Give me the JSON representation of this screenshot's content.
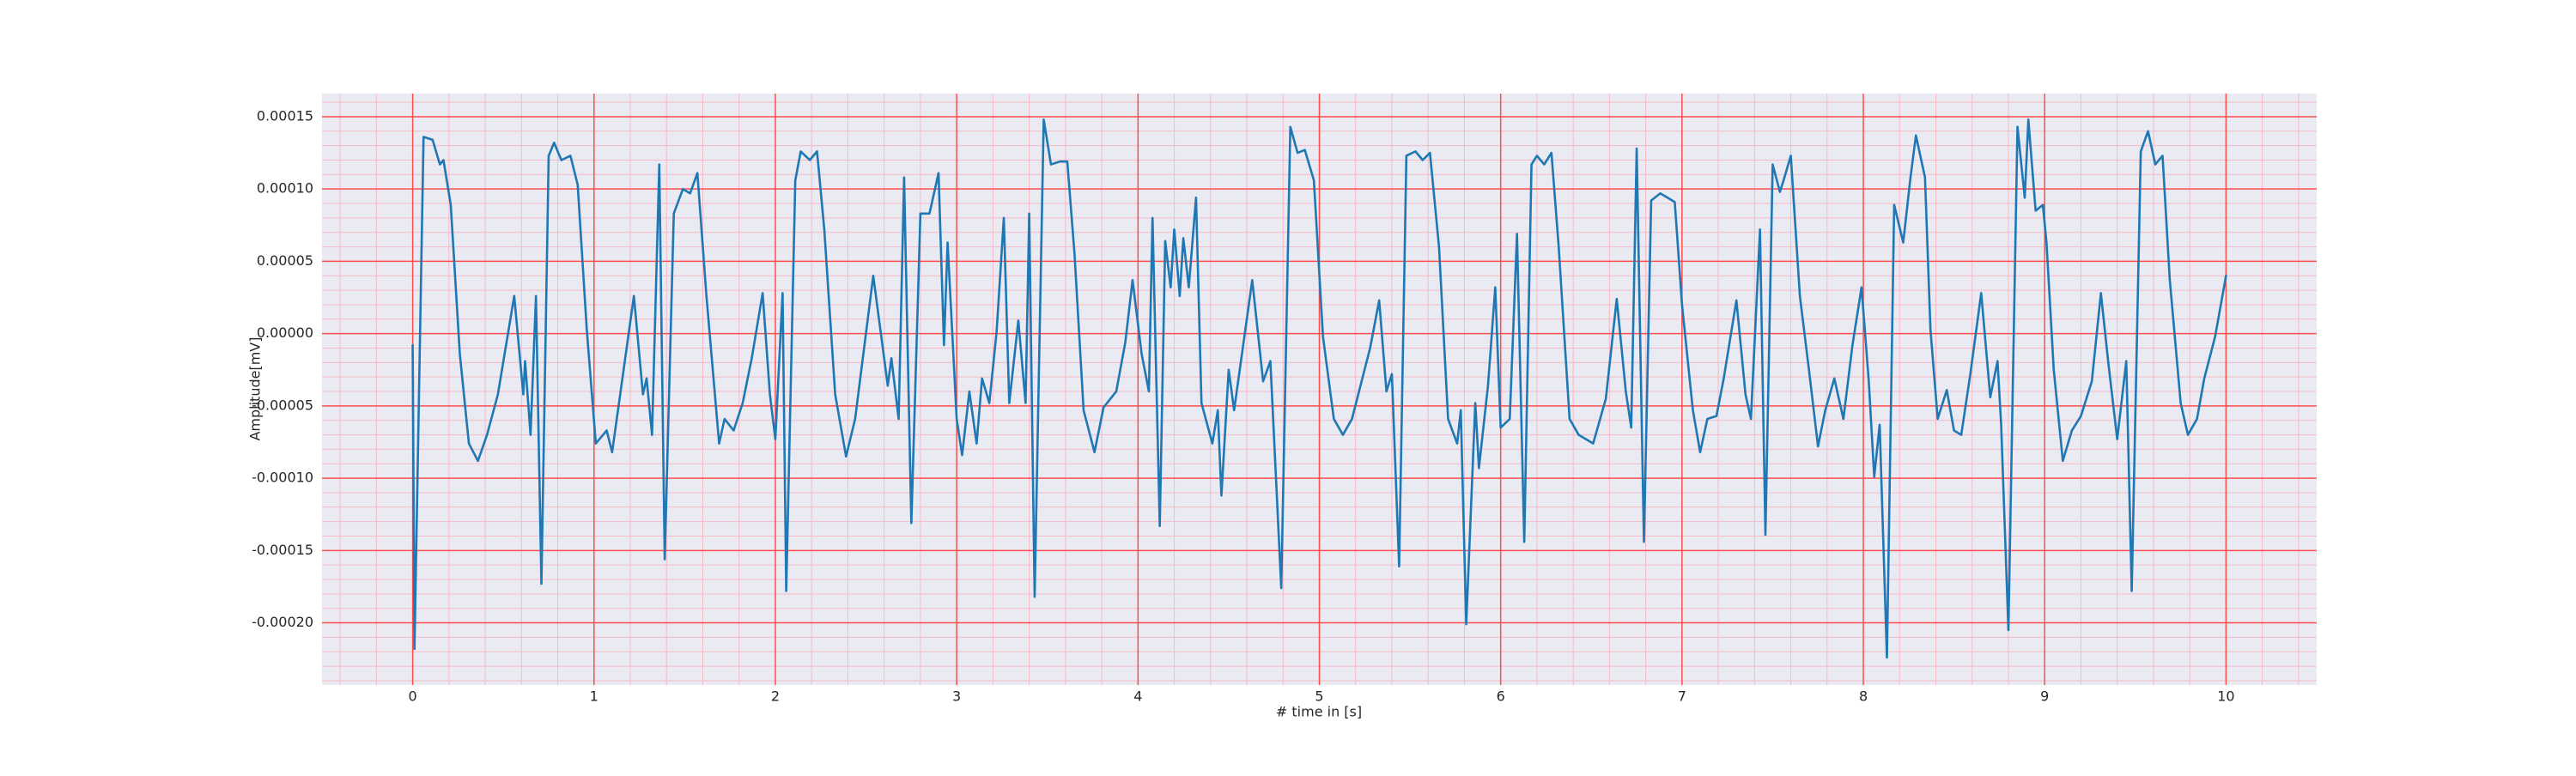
{
  "chart_data": {
    "type": "line",
    "x_label": "# time in [s]",
    "y_label": "Amplitude[mV]",
    "xlim": [
      -0.5,
      10.5
    ],
    "ylim": [
      -0.000243,
      0.000166
    ],
    "xticks": [
      0,
      1,
      2,
      3,
      4,
      5,
      6,
      7,
      8,
      9,
      10
    ],
    "yticks": [
      {
        "value": -0.0002,
        "label": "-0.00020"
      },
      {
        "value": -0.00015,
        "label": "-0.00015"
      },
      {
        "value": -0.0001,
        "label": "-0.00010"
      },
      {
        "value": -5e-05,
        "label": "-0.00005"
      },
      {
        "value": 0,
        "label": "0.00000"
      },
      {
        "value": 5e-05,
        "label": "0.00005"
      },
      {
        "value": 0.0001,
        "label": "0.00010"
      },
      {
        "value": 0.00015,
        "label": "0.00015"
      }
    ],
    "grid": true,
    "grid_color": "#ff4d4d",
    "minor_grid": true,
    "minor_grid_color": "#f6b9c6",
    "x": [
      0,
      0.01,
      0.06,
      0.11,
      0.15,
      0.17,
      0.21,
      0.26,
      0.31,
      0.36,
      0.41,
      0.47,
      0.56,
      0.61,
      0.62,
      0.65,
      0.68,
      0.71,
      0.75,
      0.78,
      0.82,
      0.87,
      0.91,
      0.96,
      1.01,
      1.07,
      1.1,
      1.16,
      1.22,
      1.27,
      1.29,
      1.32,
      1.36,
      1.39,
      1.44,
      1.49,
      1.53,
      1.57,
      1.62,
      1.69,
      1.72,
      1.77,
      1.82,
      1.87,
      1.93,
      1.97,
      2.0,
      2.04,
      2.06,
      2.11,
      2.14,
      2.19,
      2.23,
      2.27,
      2.33,
      2.39,
      2.44,
      2.54,
      2.62,
      2.64,
      2.68,
      2.71,
      2.75,
      2.8,
      2.85,
      2.9,
      2.93,
      2.95,
      3.0,
      3.03,
      3.07,
      3.11,
      3.14,
      3.18,
      3.22,
      3.26,
      3.29,
      3.34,
      3.38,
      3.4,
      3.43,
      3.48,
      3.52,
      3.57,
      3.61,
      3.65,
      3.7,
      3.76,
      3.81,
      3.88,
      3.93,
      3.97,
      4.02,
      4.06,
      4.08,
      4.12,
      4.15,
      4.18,
      4.2,
      4.23,
      4.25,
      4.28,
      4.32,
      4.35,
      4.41,
      4.44,
      4.46,
      4.5,
      4.53,
      4.63,
      4.69,
      4.73,
      4.79,
      4.84,
      4.88,
      4.92,
      4.97,
      5.02,
      5.08,
      5.13,
      5.18,
      5.28,
      5.33,
      5.37,
      5.4,
      5.44,
      5.48,
      5.53,
      5.57,
      5.61,
      5.66,
      5.71,
      5.76,
      5.78,
      5.81,
      5.86,
      5.88,
      5.93,
      5.97,
      6.0,
      6.05,
      6.09,
      6.13,
      6.17,
      6.2,
      6.24,
      6.28,
      6.32,
      6.38,
      6.43,
      6.51,
      6.58,
      6.64,
      6.69,
      6.72,
      6.75,
      6.79,
      6.83,
      6.88,
      6.92,
      6.96,
      7.0,
      7.06,
      7.1,
      7.14,
      7.19,
      7.23,
      7.3,
      7.35,
      7.38,
      7.43,
      7.46,
      7.5,
      7.54,
      7.56,
      7.6,
      7.65,
      7.7,
      7.75,
      7.79,
      7.84,
      7.89,
      7.94,
      7.99,
      8.03,
      8.06,
      8.09,
      8.13,
      8.17,
      8.22,
      8.26,
      8.29,
      8.34,
      8.37,
      8.41,
      8.46,
      8.5,
      8.54,
      8.59,
      8.65,
      8.7,
      8.74,
      8.76,
      8.8,
      8.85,
      8.89,
      8.91,
      8.95,
      8.99,
      9.01,
      9.05,
      9.1,
      9.15,
      9.2,
      9.26,
      9.31,
      9.35,
      9.4,
      9.45,
      9.48,
      9.53,
      9.57,
      9.61,
      9.65,
      9.69,
      9.75,
      9.79,
      9.84,
      9.88,
      9.94,
      10.0
    ],
    "series": [
      {
        "color": "#1f77b4",
        "values": [
          -8e-06,
          -0.000218,
          0.000136,
          0.000134,
          0.000117,
          0.00012,
          8.9e-05,
          -1.4e-05,
          -7.6e-05,
          -8.8e-05,
          -7e-05,
          -4.2e-05,
          2.6e-05,
          -4.2e-05,
          -1.9e-05,
          -7e-05,
          2.6e-05,
          -0.000173,
          0.000123,
          0.000132,
          0.00012,
          0.000123,
          0.000103,
          3e-06,
          -7.6e-05,
          -6.7e-05,
          -8.2e-05,
          -2.8e-05,
          2.6e-05,
          -4.2e-05,
          -3.1e-05,
          -7e-05,
          0.000117,
          -0.000156,
          8.3e-05,
          0.0001,
          9.7e-05,
          0.000111,
          2.6e-05,
          -7.6e-05,
          -5.9e-05,
          -6.7e-05,
          -4.8e-05,
          -1.7e-05,
          2.8e-05,
          -4.2e-05,
          -7.3e-05,
          2.8e-05,
          -0.000178,
          0.000106,
          0.000126,
          0.00012,
          0.000126,
          7.2e-05,
          -4.2e-05,
          -8.5e-05,
          -5.9e-05,
          4e-05,
          -3.6e-05,
          -1.7e-05,
          -5.9e-05,
          0.000108,
          -0.000131,
          8.3e-05,
          8.3e-05,
          0.000111,
          -8e-06,
          6.3e-05,
          -5.9e-05,
          -8.4e-05,
          -4e-05,
          -7.6e-05,
          -3.1e-05,
          -4.8e-05,
          1e-06,
          8e-05,
          -4.8e-05,
          9e-06,
          -4.8e-05,
          8.3e-05,
          -0.000182,
          0.000148,
          0.000117,
          0.000119,
          0.000119,
          5.5e-05,
          -5.3e-05,
          -8.2e-05,
          -5.1e-05,
          -4e-05,
          -6e-06,
          3.7e-05,
          -1.4e-05,
          -4e-05,
          8e-05,
          -0.000133,
          6.4e-05,
          3.2e-05,
          7.2e-05,
          2.6e-05,
          6.6e-05,
          3.2e-05,
          9.4e-05,
          -4.8e-05,
          -7.6e-05,
          -5.3e-05,
          -0.000112,
          -2.5e-05,
          -5.3e-05,
          3.7e-05,
          -3.3e-05,
          -1.9e-05,
          -0.000176,
          0.000143,
          0.000125,
          0.000127,
          0.000106,
          -2e-06,
          -5.9e-05,
          -7e-05,
          -5.9e-05,
          -1e-05,
          2.3e-05,
          -4e-05,
          -2.8e-05,
          -0.000161,
          0.000123,
          0.000126,
          0.00012,
          0.000125,
          6e-05,
          -5.9e-05,
          -7.6e-05,
          -5.3e-05,
          -0.000201,
          -4.8e-05,
          -9.3e-05,
          -3.6e-05,
          3.2e-05,
          -6.5e-05,
          -5.9e-05,
          6.9e-05,
          -0.000144,
          0.000117,
          0.000123,
          0.000117,
          0.000125,
          6e-05,
          -5.9e-05,
          -7e-05,
          -7.6e-05,
          -4.5e-05,
          2.4e-05,
          -4e-05,
          -6.5e-05,
          0.000128,
          -0.000144,
          9.2e-05,
          9.7e-05,
          9.4e-05,
          9.1e-05,
          2e-05,
          -5.3e-05,
          -8.2e-05,
          -5.9e-05,
          -5.7e-05,
          -3.1e-05,
          2.3e-05,
          -4.2e-05,
          -5.9e-05,
          7.2e-05,
          -0.000139,
          0.000117,
          9.8e-05,
          0.000106,
          0.000123,
          2.6e-05,
          -2.5e-05,
          -7.8e-05,
          -5.3e-05,
          -3.1e-05,
          -5.9e-05,
          -8e-06,
          3.2e-05,
          -3.3e-05,
          -9.9e-05,
          -6.3e-05,
          -0.000224,
          8.9e-05,
          6.3e-05,
          0.000108,
          0.000137,
          0.000108,
          3e-06,
          -5.9e-05,
          -3.9e-05,
          -6.7e-05,
          -7e-05,
          -2.8e-05,
          2.8e-05,
          -4.4e-05,
          -1.9e-05,
          -6.3e-05,
          -0.000205,
          0.000143,
          9.4e-05,
          0.000148,
          8.5e-05,
          8.9e-05,
          6.3e-05,
          -2.5e-05,
          -8.8e-05,
          -6.7e-05,
          -5.7e-05,
          -3.3e-05,
          2.8e-05,
          -1.9e-05,
          -7.3e-05,
          -1.9e-05,
          -0.000178,
          0.000126,
          0.00014,
          0.000117,
          0.000123,
          3.7e-05,
          -4.8e-05,
          -7e-05,
          -5.9e-05,
          -3.1e-05,
          -2e-06,
          4e-05
        ]
      }
    ]
  }
}
